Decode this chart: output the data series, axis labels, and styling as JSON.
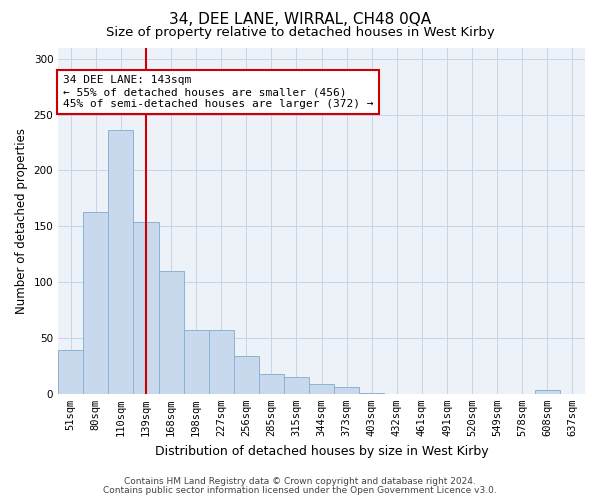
{
  "title": "34, DEE LANE, WIRRAL, CH48 0QA",
  "subtitle": "Size of property relative to detached houses in West Kirby",
  "xlabel": "Distribution of detached houses by size in West Kirby",
  "ylabel": "Number of detached properties",
  "bar_labels": [
    "51sqm",
    "80sqm",
    "110sqm",
    "139sqm",
    "168sqm",
    "198sqm",
    "227sqm",
    "256sqm",
    "285sqm",
    "315sqm",
    "344sqm",
    "373sqm",
    "403sqm",
    "432sqm",
    "461sqm",
    "491sqm",
    "520sqm",
    "549sqm",
    "578sqm",
    "608sqm",
    "637sqm"
  ],
  "bar_values": [
    39,
    163,
    236,
    154,
    110,
    57,
    57,
    34,
    18,
    15,
    9,
    6,
    1,
    0,
    0,
    0,
    0,
    0,
    0,
    3,
    0
  ],
  "bar_color": "#c8d9ed",
  "bar_edgecolor": "#8ab4d4",
  "vline_x": 3.5,
  "vline_color": "#cc0000",
  "annotation_text": "34 DEE LANE: 143sqm\n← 55% of detached houses are smaller (456)\n45% of semi-detached houses are larger (372) →",
  "annotation_box_color": "#ffffff",
  "annotation_box_edgecolor": "#cc0000",
  "ylim": [
    0,
    310
  ],
  "yticks": [
    0,
    50,
    100,
    150,
    200,
    250,
    300
  ],
  "grid_color": "#c8d4e8",
  "bg_color": "#ffffff",
  "plot_bg_color": "#edf2f9",
  "footer_line1": "Contains HM Land Registry data © Crown copyright and database right 2024.",
  "footer_line2": "Contains public sector information licensed under the Open Government Licence v3.0.",
  "title_fontsize": 11,
  "subtitle_fontsize": 9.5,
  "xlabel_fontsize": 9,
  "ylabel_fontsize": 8.5,
  "tick_fontsize": 7.5,
  "annot_fontsize": 8,
  "footer_fontsize": 6.5
}
